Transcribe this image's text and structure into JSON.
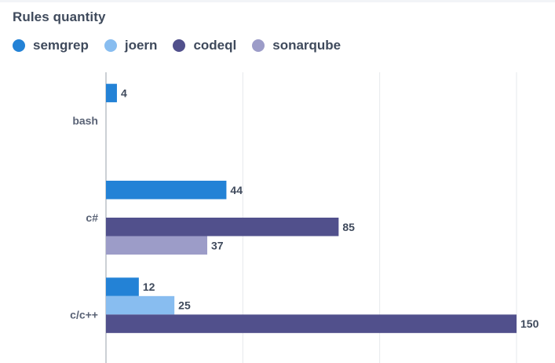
{
  "chart_data": {
    "type": "bar",
    "orientation": "horizontal",
    "title": "Rules quantity",
    "categories": [
      "bash",
      "c#",
      "c/c++"
    ],
    "series": [
      {
        "name": "semgrep",
        "color": "#2382d6",
        "values": [
          4,
          44,
          12
        ]
      },
      {
        "name": "joern",
        "color": "#88bdf0",
        "values": [
          null,
          null,
          25
        ]
      },
      {
        "name": "codeql",
        "color": "#51508c",
        "values": [
          null,
          85,
          150
        ]
      },
      {
        "name": "sonarqube",
        "color": "#9c9cc8",
        "values": [
          null,
          37,
          null
        ]
      }
    ],
    "xlim": [
      0,
      150
    ],
    "grid": true,
    "legend_position": "top-left",
    "xlabel": "",
    "ylabel": ""
  }
}
